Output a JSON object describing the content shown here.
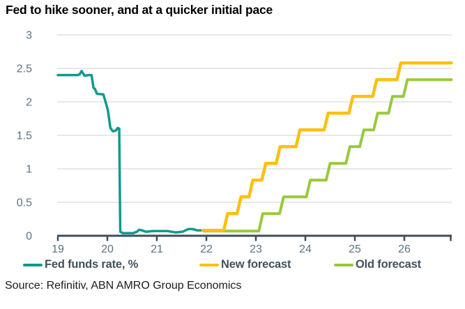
{
  "title": "Fed to hike sooner, and at a quicker initial pace",
  "source": "Source: Refinitiv, ABN AMRO Group Economics",
  "colors": {
    "teal": "#109a8c",
    "yellow": "#fcc00e",
    "green": "#98c93c",
    "axis": "#3e4c57",
    "tick_label": "#5b7282",
    "gridline": "#d9d9d9",
    "legend_text": "#3f5260",
    "title_text": "#000000",
    "background": "#ffffff"
  },
  "legend": {
    "items": [
      {
        "label": "Fed funds rate, %",
        "color": "#109a8c"
      },
      {
        "label": "New forecast",
        "color": "#fcc00e"
      },
      {
        "label": "Old forecast",
        "color": "#98c93c"
      }
    ]
  },
  "chart_data": {
    "type": "line",
    "title": "Fed to hike sooner, and at a quicker initial pace",
    "xlabel": "",
    "ylabel": "",
    "xlim": [
      18.98,
      26.97
    ],
    "ylim": [
      0,
      3
    ],
    "grid": "horizontal",
    "legend_position": "bottom",
    "x_ticks": [
      19,
      20,
      21,
      22,
      23,
      24,
      25,
      26
    ],
    "x_tick_labels": [
      "19",
      "20",
      "21",
      "22",
      "23",
      "24",
      "25",
      "26"
    ],
    "y_ticks": [
      0,
      0.5,
      1,
      1.5,
      2,
      2.5,
      3
    ],
    "y_tick_labels": [
      "0",
      "0.5",
      "1",
      "1.5",
      "2",
      "2.5",
      "3"
    ],
    "series": [
      {
        "name": "Fed funds rate, %",
        "color": "#109a8c",
        "stroke_width": 3.5,
        "points": [
          [
            19.0,
            2.4
          ],
          [
            19.4,
            2.4
          ],
          [
            19.44,
            2.41
          ],
          [
            19.48,
            2.46
          ],
          [
            19.54,
            2.39
          ],
          [
            19.62,
            2.4
          ],
          [
            19.68,
            2.4
          ],
          [
            19.72,
            2.21
          ],
          [
            19.75,
            2.19
          ],
          [
            19.79,
            2.12
          ],
          [
            19.92,
            2.11
          ],
          [
            20.01,
            1.88
          ],
          [
            20.06,
            1.61
          ],
          [
            20.11,
            1.56
          ],
          [
            20.17,
            1.57
          ],
          [
            20.21,
            1.61
          ],
          [
            20.24,
            1.6
          ],
          [
            20.26,
            0.06
          ],
          [
            20.31,
            0.04
          ],
          [
            20.52,
            0.04
          ],
          [
            20.6,
            0.06
          ],
          [
            20.64,
            0.09
          ],
          [
            20.7,
            0.08
          ],
          [
            20.78,
            0.06
          ],
          [
            20.92,
            0.07
          ],
          [
            21.08,
            0.07
          ],
          [
            21.22,
            0.07
          ],
          [
            21.38,
            0.05
          ],
          [
            21.52,
            0.06
          ],
          [
            21.64,
            0.1
          ],
          [
            21.72,
            0.1
          ],
          [
            21.82,
            0.08
          ],
          [
            21.93,
            0.08
          ]
        ]
      },
      {
        "name": "Old forecast",
        "color": "#98c93c",
        "stroke_width": 4,
        "points": [
          [
            21.95,
            0.07
          ],
          [
            23.06,
            0.07
          ],
          [
            23.14,
            0.33
          ],
          [
            23.48,
            0.33
          ],
          [
            23.56,
            0.58
          ],
          [
            24.02,
            0.58
          ],
          [
            24.1,
            0.83
          ],
          [
            24.42,
            0.83
          ],
          [
            24.5,
            1.08
          ],
          [
            24.82,
            1.08
          ],
          [
            24.9,
            1.33
          ],
          [
            25.1,
            1.33
          ],
          [
            25.18,
            1.58
          ],
          [
            25.38,
            1.58
          ],
          [
            25.46,
            1.83
          ],
          [
            25.68,
            1.83
          ],
          [
            25.76,
            2.08
          ],
          [
            25.98,
            2.08
          ],
          [
            26.06,
            2.33
          ],
          [
            26.95,
            2.33
          ]
        ]
      },
      {
        "name": "New forecast",
        "color": "#fcc00e",
        "stroke_width": 4.5,
        "points": [
          [
            21.93,
            0.08
          ],
          [
            22.35,
            0.08
          ],
          [
            22.43,
            0.33
          ],
          [
            22.62,
            0.33
          ],
          [
            22.7,
            0.58
          ],
          [
            22.86,
            0.58
          ],
          [
            22.94,
            0.83
          ],
          [
            23.12,
            0.83
          ],
          [
            23.2,
            1.08
          ],
          [
            23.41,
            1.08
          ],
          [
            23.49,
            1.33
          ],
          [
            23.81,
            1.33
          ],
          [
            23.89,
            1.58
          ],
          [
            24.38,
            1.58
          ],
          [
            24.46,
            1.83
          ],
          [
            24.88,
            1.83
          ],
          [
            24.96,
            2.08
          ],
          [
            25.36,
            2.08
          ],
          [
            25.44,
            2.33
          ],
          [
            25.85,
            2.33
          ],
          [
            25.93,
            2.58
          ],
          [
            26.95,
            2.58
          ]
        ]
      }
    ]
  }
}
